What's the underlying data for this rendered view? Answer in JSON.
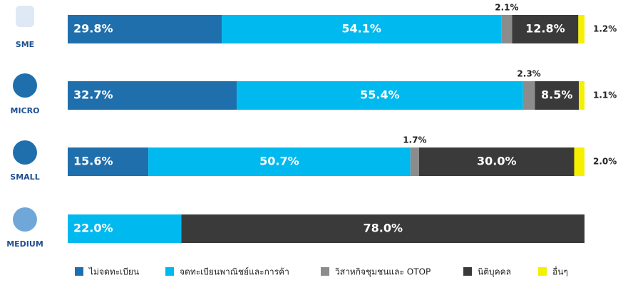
{
  "chart_data": {
    "type": "stacked-bar-horizontal",
    "categories": [
      "SME",
      "MICRO",
      "SMALL",
      "MEDIUM"
    ],
    "series": [
      {
        "name": "ไม่จดทะเบียน",
        "color": "#1f6fad",
        "values": [
          29.8,
          32.7,
          15.6,
          null
        ],
        "value_labels": [
          "29.8%",
          "32.7%",
          "15.6%",
          null
        ]
      },
      {
        "name": "จดทะเบียนพาณิชย์และการค้า",
        "color": "#00b9ef",
        "values": [
          54.1,
          55.4,
          50.7,
          22.0
        ],
        "value_labels": [
          "54.1%",
          "55.4%",
          "50.7%",
          "22.0%"
        ]
      },
      {
        "name": "วิสาหกิจชุมชนและ OTOP",
        "color": "#8c8c8c",
        "values": [
          2.1,
          2.3,
          1.7,
          null
        ],
        "value_labels": [
          "2.1%",
          "2.3%",
          "1.7%",
          null
        ]
      },
      {
        "name": "นิติบุคคล",
        "color": "#3a3a3a",
        "values": [
          12.8,
          8.5,
          30.0,
          78.0
        ],
        "value_labels": [
          "12.8%",
          "8.5%",
          "30.0%",
          "78.0%"
        ]
      },
      {
        "name": "อื่นๆ",
        "color": "#f5f000",
        "values": [
          1.2,
          1.1,
          2.0,
          null
        ],
        "value_labels": [
          "1.2%",
          "1.1%",
          "2.0%",
          null
        ]
      }
    ],
    "legend": "bottom"
  }
}
